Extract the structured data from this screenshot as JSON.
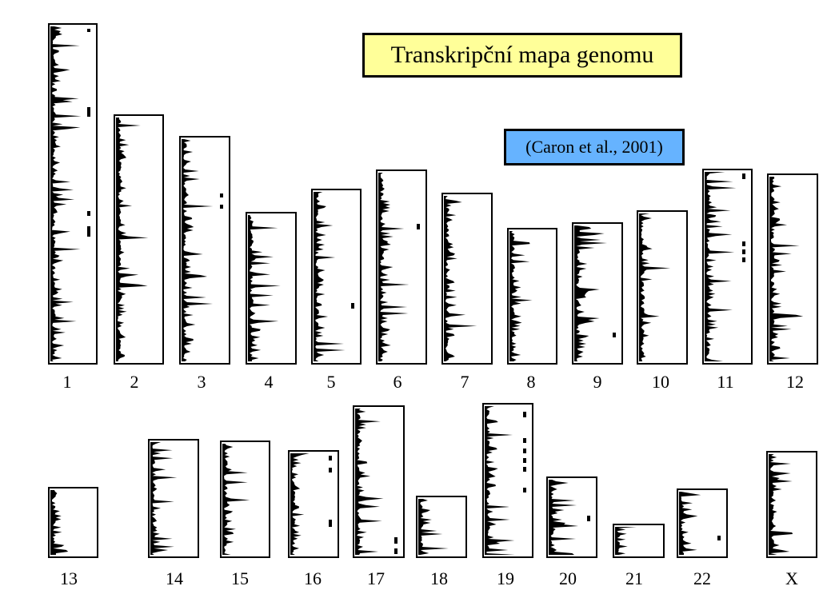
{
  "title": "Transkripční mapa genomu",
  "citation": "(Caron et al., 2001)",
  "chromosomes": [
    {
      "label": "1"
    },
    {
      "label": "2"
    },
    {
      "label": "3"
    },
    {
      "label": "4"
    },
    {
      "label": "5"
    },
    {
      "label": "6"
    },
    {
      "label": "7"
    },
    {
      "label": "8"
    },
    {
      "label": "9"
    },
    {
      "label": "10"
    },
    {
      "label": "11"
    },
    {
      "label": "12"
    },
    {
      "label": "13"
    },
    {
      "label": "14"
    },
    {
      "label": "15"
    },
    {
      "label": "16"
    },
    {
      "label": "17"
    },
    {
      "label": "18"
    },
    {
      "label": "19"
    },
    {
      "label": "20"
    },
    {
      "label": "21"
    },
    {
      "label": "22"
    },
    {
      "label": "X"
    }
  ],
  "colors": {
    "title_bg": "#ffff99",
    "citation_bg": "#66b3ff",
    "histogram": "#000000"
  }
}
